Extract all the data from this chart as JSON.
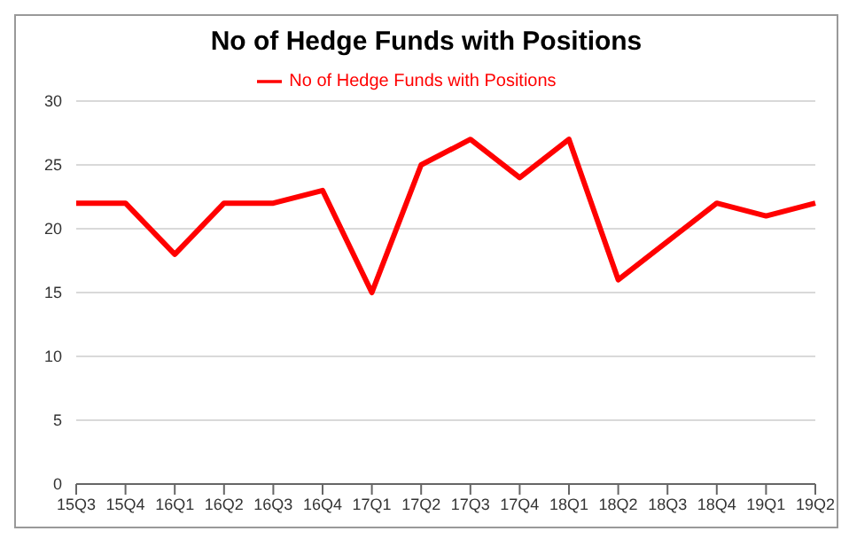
{
  "chart_data": {
    "type": "line",
    "title": "No of Hedge Funds with Positions",
    "categories": [
      "15Q3",
      "15Q4",
      "16Q1",
      "16Q2",
      "16Q3",
      "16Q4",
      "17Q1",
      "17Q2",
      "17Q3",
      "17Q4",
      "18Q1",
      "18Q2",
      "18Q3",
      "18Q4",
      "19Q1",
      "19Q2"
    ],
    "series": [
      {
        "name": "No of Hedge Funds with Positions",
        "color": "#ff0000",
        "values": [
          22,
          22,
          18,
          22,
          22,
          23,
          15,
          25,
          27,
          24,
          27,
          16,
          19,
          22,
          21,
          22
        ]
      }
    ],
    "ylim": [
      0,
      30
    ],
    "yticks": [
      0,
      5,
      10,
      15,
      20,
      25,
      30
    ],
    "grid": "y",
    "legend": "top",
    "marker": "none",
    "line_style": "solid"
  }
}
